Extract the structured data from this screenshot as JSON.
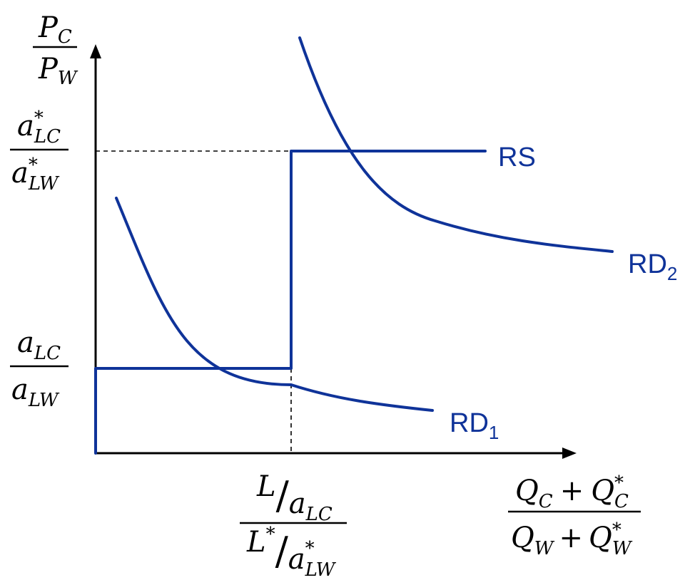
{
  "colors": {
    "curve": "#0f3399",
    "axis": "#000000",
    "label": "#0f3399"
  },
  "y_axis_label": {
    "num_base": "P",
    "num_sub": "C",
    "den_base": "P",
    "den_sub": "W"
  },
  "x_axis_label": {
    "num_a": "Q",
    "num_a_sub": "C",
    "plus_1": "+",
    "num_b": "Q",
    "num_b_sub": "C",
    "num_b_sup": "*",
    "den_a": "Q",
    "den_a_sub": "W",
    "plus_2": "+",
    "den_b": "Q",
    "den_b_sub": "W",
    "den_b_sup": "*"
  },
  "y_tick_high": {
    "num_base": "a",
    "num_sub": "LC",
    "num_sup": "*",
    "den_base": "a",
    "den_sub": "LW",
    "den_sup": "*"
  },
  "y_tick_low": {
    "num_base": "a",
    "num_sub": "LC",
    "den_base": "a",
    "den_sub": "LW"
  },
  "x_tick": {
    "top_L": "L",
    "top_slash": "/",
    "top_a": "a",
    "top_a_sub": "LC",
    "bot_L": "L",
    "bot_L_sup": "*",
    "bot_slash": "/",
    "bot_a": "a",
    "bot_a_sub": "LW",
    "bot_a_sup": "*"
  },
  "curves": {
    "rs": {
      "label": "RS"
    },
    "rd1": {
      "base": "RD",
      "sub": "1"
    },
    "rd2": {
      "base": "RD",
      "sub": "2"
    }
  }
}
